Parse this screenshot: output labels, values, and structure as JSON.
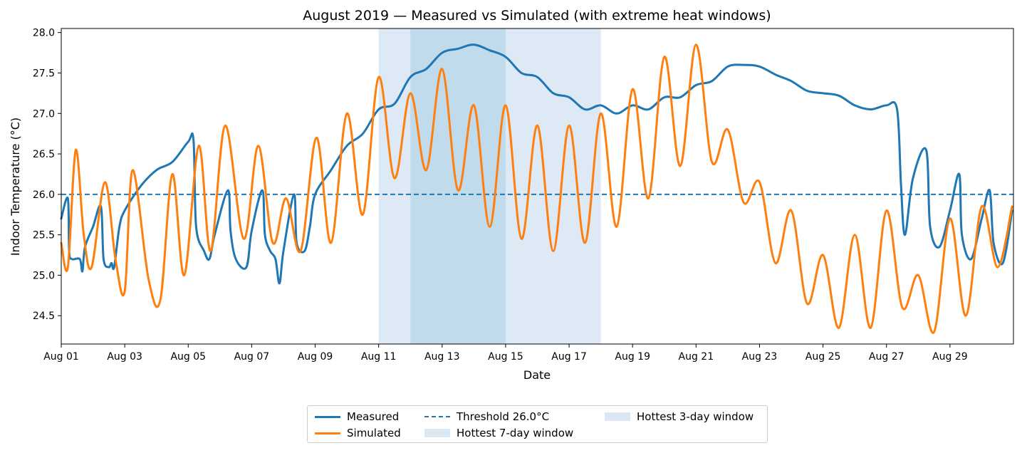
{
  "chart_data": {
    "type": "line",
    "title": "August 2019 — Measured vs Simulated (with extreme heat windows)",
    "xlabel": "Date",
    "ylabel": "Indoor Temperature (°C)",
    "xlim": [
      "2019-08-01",
      "2019-08-31"
    ],
    "ylim": [
      24.15,
      28.05
    ],
    "x_ticks": [
      "Aug 01",
      "Aug 03",
      "Aug 05",
      "Aug 07",
      "Aug 09",
      "Aug 11",
      "Aug 13",
      "Aug 15",
      "Aug 17",
      "Aug 19",
      "Aug 21",
      "Aug 23",
      "Aug 25",
      "Aug 27",
      "Aug 29"
    ],
    "y_ticks": [
      "24.5",
      "25.0",
      "25.5",
      "26.0",
      "26.5",
      "27.0",
      "27.5",
      "28.0"
    ],
    "grid": false,
    "legend_placement": "bottom-center",
    "threshold": {
      "name": "Threshold 26.0°C",
      "value": 26.0,
      "color": "#1f77b4",
      "style": "dashed"
    },
    "windows": [
      {
        "name": "Hottest 7-day window",
        "start": "2019-08-11",
        "end": "2019-08-18",
        "color": "#c6dbef",
        "opacity": 0.6
      },
      {
        "name": "Hottest 3-day window",
        "start": "2019-08-12",
        "end": "2019-08-15",
        "color": "#9ecae1",
        "opacity": 0.45
      }
    ],
    "series": [
      {
        "name": "Measured",
        "color": "#1f77b4",
        "points": [
          [
            "2019-08-01 00:00",
            25.7
          ],
          [
            "2019-08-01 05:00",
            25.95
          ],
          [
            "2019-08-01 06:00",
            25.3
          ],
          [
            "2019-08-01 08:00",
            25.2
          ],
          [
            "2019-08-01 14:00",
            25.2
          ],
          [
            "2019-08-01 16:00",
            25.05
          ],
          [
            "2019-08-01 18:00",
            25.35
          ],
          [
            "2019-08-02 00:00",
            25.6
          ],
          [
            "2019-08-02 06:00",
            25.85
          ],
          [
            "2019-08-02 08:00",
            25.2
          ],
          [
            "2019-08-02 12:00",
            25.1
          ],
          [
            "2019-08-02 14:00",
            25.15
          ],
          [
            "2019-08-02 16:00",
            25.1
          ],
          [
            "2019-08-02 20:00",
            25.6
          ],
          [
            "2019-08-03 00:00",
            25.8
          ],
          [
            "2019-08-03 12:00",
            26.1
          ],
          [
            "2019-08-04 00:00",
            26.3
          ],
          [
            "2019-08-04 12:00",
            26.4
          ],
          [
            "2019-08-05 00:00",
            26.65
          ],
          [
            "2019-08-05 04:00",
            26.67
          ],
          [
            "2019-08-05 06:00",
            25.6
          ],
          [
            "2019-08-05 12:00",
            25.3
          ],
          [
            "2019-08-05 16:00",
            25.2
          ],
          [
            "2019-08-05 20:00",
            25.5
          ],
          [
            "2019-08-06 06:00",
            26.05
          ],
          [
            "2019-08-06 08:00",
            25.55
          ],
          [
            "2019-08-06 12:00",
            25.2
          ],
          [
            "2019-08-06 20:00",
            25.1
          ],
          [
            "2019-08-07 00:00",
            25.55
          ],
          [
            "2019-08-07 08:00",
            26.05
          ],
          [
            "2019-08-07 10:00",
            25.5
          ],
          [
            "2019-08-07 14:00",
            25.3
          ],
          [
            "2019-08-07 18:00",
            25.2
          ],
          [
            "2019-08-07 21:00",
            24.9
          ],
          [
            "2019-08-08 00:00",
            25.3
          ],
          [
            "2019-08-08 08:00",
            26.0
          ],
          [
            "2019-08-08 10:00",
            25.4
          ],
          [
            "2019-08-08 16:00",
            25.3
          ],
          [
            "2019-08-08 20:00",
            25.6
          ],
          [
            "2019-08-09 00:00",
            26.0
          ],
          [
            "2019-08-09 12:00",
            26.3
          ],
          [
            "2019-08-10 00:00",
            26.6
          ],
          [
            "2019-08-10 12:00",
            26.75
          ],
          [
            "2019-08-11 00:00",
            27.05
          ],
          [
            "2019-08-11 12:00",
            27.12
          ],
          [
            "2019-08-12 00:00",
            27.45
          ],
          [
            "2019-08-12 12:00",
            27.55
          ],
          [
            "2019-08-13 00:00",
            27.75
          ],
          [
            "2019-08-13 12:00",
            27.8
          ],
          [
            "2019-08-14 00:00",
            27.85
          ],
          [
            "2019-08-14 12:00",
            27.78
          ],
          [
            "2019-08-15 00:00",
            27.7
          ],
          [
            "2019-08-15 12:00",
            27.5
          ],
          [
            "2019-08-16 00:00",
            27.45
          ],
          [
            "2019-08-16 12:00",
            27.25
          ],
          [
            "2019-08-17 00:00",
            27.2
          ],
          [
            "2019-08-17 12:00",
            27.05
          ],
          [
            "2019-08-18 00:00",
            27.1
          ],
          [
            "2019-08-18 12:00",
            27.0
          ],
          [
            "2019-08-19 00:00",
            27.1
          ],
          [
            "2019-08-19 12:00",
            27.05
          ],
          [
            "2019-08-20 00:00",
            27.2
          ],
          [
            "2019-08-20 12:00",
            27.2
          ],
          [
            "2019-08-21 00:00",
            27.35
          ],
          [
            "2019-08-21 12:00",
            27.4
          ],
          [
            "2019-08-22 00:00",
            27.58
          ],
          [
            "2019-08-22 12:00",
            27.6
          ],
          [
            "2019-08-23 00:00",
            27.58
          ],
          [
            "2019-08-23 12:00",
            27.48
          ],
          [
            "2019-08-24 00:00",
            27.4
          ],
          [
            "2019-08-24 12:00",
            27.28
          ],
          [
            "2019-08-25 00:00",
            27.25
          ],
          [
            "2019-08-25 12:00",
            27.22
          ],
          [
            "2019-08-26 00:00",
            27.1
          ],
          [
            "2019-08-26 12:00",
            27.05
          ],
          [
            "2019-08-27 00:00",
            27.1
          ],
          [
            "2019-08-27 08:00",
            27.05
          ],
          [
            "2019-08-27 11:00",
            26.1
          ],
          [
            "2019-08-27 14:00",
            25.5
          ],
          [
            "2019-08-27 20:00",
            26.2
          ],
          [
            "2019-08-28 06:00",
            26.55
          ],
          [
            "2019-08-28 09:00",
            25.6
          ],
          [
            "2019-08-28 16:00",
            25.35
          ],
          [
            "2019-08-29 00:00",
            25.8
          ],
          [
            "2019-08-29 07:00",
            26.25
          ],
          [
            "2019-08-29 09:00",
            25.5
          ],
          [
            "2019-08-29 16:00",
            25.2
          ],
          [
            "2019-08-30 00:00",
            25.7
          ],
          [
            "2019-08-30 06:00",
            26.05
          ],
          [
            "2019-08-30 09:00",
            25.4
          ],
          [
            "2019-08-30 16:00",
            25.15
          ],
          [
            "2019-08-30 23:00",
            25.8
          ]
        ]
      },
      {
        "name": "Simulated",
        "color": "#ff7f0e",
        "points": [
          [
            "2019-08-01 00:00",
            25.4
          ],
          [
            "2019-08-01 05:00",
            25.1
          ],
          [
            "2019-08-01 11:00",
            26.55
          ],
          [
            "2019-08-01 17:00",
            25.5
          ],
          [
            "2019-08-01 23:00",
            25.1
          ],
          [
            "2019-08-02 09:00",
            26.15
          ],
          [
            "2019-08-02 17:00",
            25.2
          ],
          [
            "2019-08-03 00:00",
            24.8
          ],
          [
            "2019-08-03 06:00",
            26.3
          ],
          [
            "2019-08-03 18:00",
            24.95
          ],
          [
            "2019-08-04 03:00",
            24.7
          ],
          [
            "2019-08-04 12:00",
            26.25
          ],
          [
            "2019-08-04 21:00",
            25.0
          ],
          [
            "2019-08-05 08:00",
            26.6
          ],
          [
            "2019-08-05 17:00",
            25.3
          ],
          [
            "2019-08-06 04:00",
            26.85
          ],
          [
            "2019-08-06 18:00",
            25.45
          ],
          [
            "2019-08-07 05:00",
            26.6
          ],
          [
            "2019-08-07 16:00",
            25.4
          ],
          [
            "2019-08-08 02:00",
            25.95
          ],
          [
            "2019-08-08 13:00",
            25.3
          ],
          [
            "2019-08-09 01:00",
            26.7
          ],
          [
            "2019-08-09 12:00",
            25.4
          ],
          [
            "2019-08-10 00:00",
            27.0
          ],
          [
            "2019-08-10 12:00",
            25.75
          ],
          [
            "2019-08-11 00:00",
            27.45
          ],
          [
            "2019-08-11 12:00",
            26.2
          ],
          [
            "2019-08-12 00:00",
            27.25
          ],
          [
            "2019-08-12 12:00",
            26.3
          ],
          [
            "2019-08-13 00:00",
            27.55
          ],
          [
            "2019-08-13 12:00",
            26.05
          ],
          [
            "2019-08-14 00:00",
            27.1
          ],
          [
            "2019-08-14 12:00",
            25.6
          ],
          [
            "2019-08-15 00:00",
            27.1
          ],
          [
            "2019-08-15 12:00",
            25.45
          ],
          [
            "2019-08-16 00:00",
            26.85
          ],
          [
            "2019-08-16 12:00",
            25.3
          ],
          [
            "2019-08-17 00:00",
            26.85
          ],
          [
            "2019-08-17 12:00",
            25.4
          ],
          [
            "2019-08-18 00:00",
            27.0
          ],
          [
            "2019-08-18 12:00",
            25.6
          ],
          [
            "2019-08-19 00:00",
            27.3
          ],
          [
            "2019-08-19 12:00",
            25.95
          ],
          [
            "2019-08-20 00:00",
            27.7
          ],
          [
            "2019-08-20 12:00",
            26.35
          ],
          [
            "2019-08-21 00:00",
            27.85
          ],
          [
            "2019-08-21 12:00",
            26.4
          ],
          [
            "2019-08-22 00:00",
            26.8
          ],
          [
            "2019-08-22 12:00",
            25.9
          ],
          [
            "2019-08-23 00:00",
            26.15
          ],
          [
            "2019-08-23 12:00",
            25.15
          ],
          [
            "2019-08-24 00:00",
            25.8
          ],
          [
            "2019-08-24 12:00",
            24.65
          ],
          [
            "2019-08-25 00:00",
            25.25
          ],
          [
            "2019-08-25 12:00",
            24.35
          ],
          [
            "2019-08-26 00:00",
            25.5
          ],
          [
            "2019-08-26 12:00",
            24.35
          ],
          [
            "2019-08-27 00:00",
            25.8
          ],
          [
            "2019-08-27 12:00",
            24.6
          ],
          [
            "2019-08-28 00:00",
            25.0
          ],
          [
            "2019-08-28 12:00",
            24.3
          ],
          [
            "2019-08-29 00:00",
            25.7
          ],
          [
            "2019-08-29 12:00",
            24.5
          ],
          [
            "2019-08-30 00:00",
            25.85
          ],
          [
            "2019-08-30 12:00",
            25.1
          ],
          [
            "2019-08-30 23:00",
            25.85
          ]
        ]
      }
    ]
  },
  "legend": {
    "measured": "Measured",
    "simulated": "Simulated",
    "threshold": "Threshold 26.0°C",
    "window7": "Hottest 7-day window",
    "window3": "Hottest 3-day window"
  }
}
